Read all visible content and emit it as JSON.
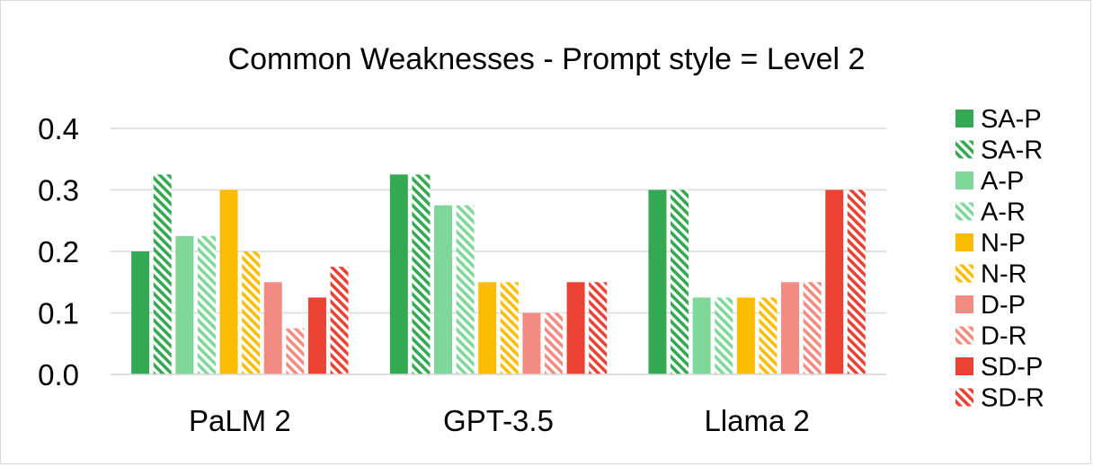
{
  "chart_data": {
    "type": "bar",
    "title": "Common Weaknesses - Prompt style = Level 2",
    "xlabel": "",
    "ylabel": "",
    "categories": [
      "PaLM 2",
      "GPT-3.5",
      "Llama 2"
    ],
    "ylim": [
      0,
      0.4
    ],
    "yticks": [
      "0.0",
      "0.1",
      "0.2",
      "0.3",
      "0.4"
    ],
    "grid": true,
    "legend_position": "right",
    "series": [
      {
        "name": "SA-P",
        "values": [
          0.2,
          0.325,
          0.3
        ],
        "color": "#34a853",
        "pattern": "solid"
      },
      {
        "name": "SA-R",
        "values": [
          0.325,
          0.325,
          0.3
        ],
        "color": "#34a853",
        "pattern": "hatch"
      },
      {
        "name": "A-P",
        "values": [
          0.225,
          0.275,
          0.125
        ],
        "color": "#7fd89a",
        "pattern": "solid"
      },
      {
        "name": "A-R",
        "values": [
          0.225,
          0.275,
          0.125
        ],
        "color": "#7fd89a",
        "pattern": "hatch"
      },
      {
        "name": "N-P",
        "values": [
          0.3,
          0.15,
          0.125
        ],
        "color": "#fbbc04",
        "pattern": "solid"
      },
      {
        "name": "N-R",
        "values": [
          0.2,
          0.15,
          0.125
        ],
        "color": "#fbbc04",
        "pattern": "hatch"
      },
      {
        "name": "D-P",
        "values": [
          0.15,
          0.1,
          0.15
        ],
        "color": "#f28b82",
        "pattern": "solid"
      },
      {
        "name": "D-R",
        "values": [
          0.075,
          0.1,
          0.15
        ],
        "color": "#f28b82",
        "pattern": "hatch"
      },
      {
        "name": "SD-P",
        "values": [
          0.125,
          0.15,
          0.3
        ],
        "color": "#ea4335",
        "pattern": "solid"
      },
      {
        "name": "SD-R",
        "values": [
          0.175,
          0.15,
          0.3
        ],
        "color": "#ea4335",
        "pattern": "hatch"
      }
    ]
  }
}
